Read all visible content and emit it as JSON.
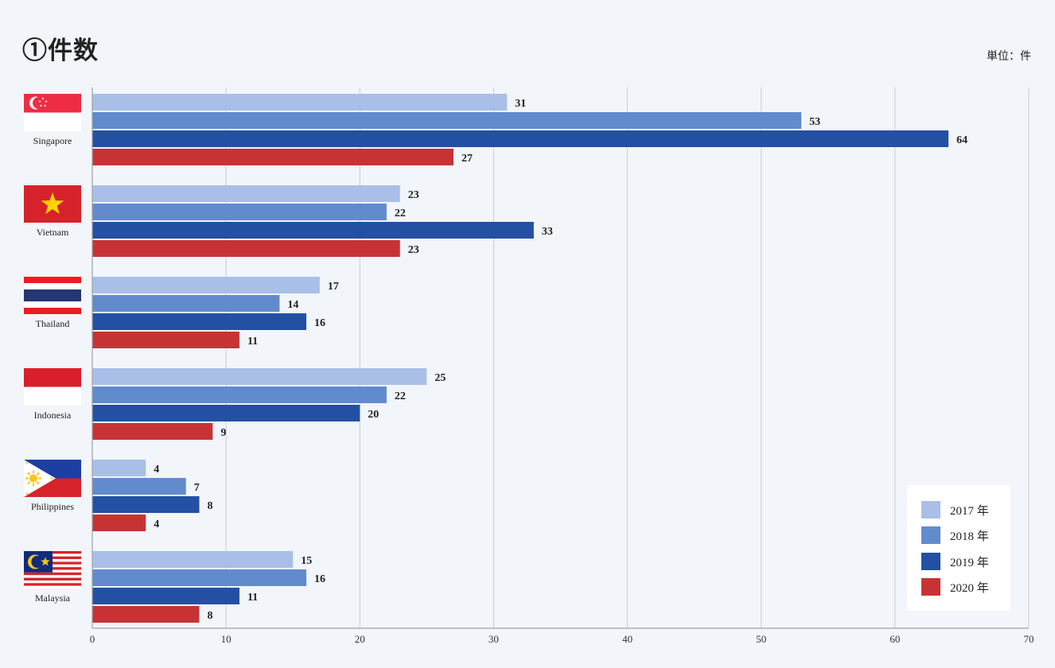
{
  "title": "①件数",
  "unit_label": "単位：件",
  "chart_data": {
    "type": "bar",
    "orientation": "horizontal",
    "categories": [
      "Singapore",
      "Vietnam",
      "Thailand",
      "Indonesia",
      "Philippines",
      "Malaysia"
    ],
    "series": [
      {
        "name": "2017 年",
        "color": "#a9bfe8",
        "values": [
          31,
          23,
          17,
          25,
          4,
          15
        ]
      },
      {
        "name": "2018 年",
        "color": "#628bcd",
        "values": [
          53,
          22,
          14,
          22,
          7,
          16
        ]
      },
      {
        "name": "2019 年",
        "color": "#2350a2",
        "values": [
          64,
          33,
          16,
          20,
          8,
          11
        ]
      },
      {
        "name": "2020 年",
        "color": "#c73335",
        "values": [
          27,
          23,
          11,
          9,
          4,
          8
        ]
      }
    ],
    "xlim": [
      0,
      70
    ],
    "xticks": [
      0,
      10,
      20,
      30,
      40,
      50,
      60,
      70
    ],
    "grid": true,
    "legend_position": "bottom-right",
    "flags": [
      "singapore-flag-icon",
      "vietnam-flag-icon",
      "thailand-flag-icon",
      "indonesia-flag-icon",
      "philippines-flag-icon",
      "malaysia-flag-icon"
    ]
  }
}
